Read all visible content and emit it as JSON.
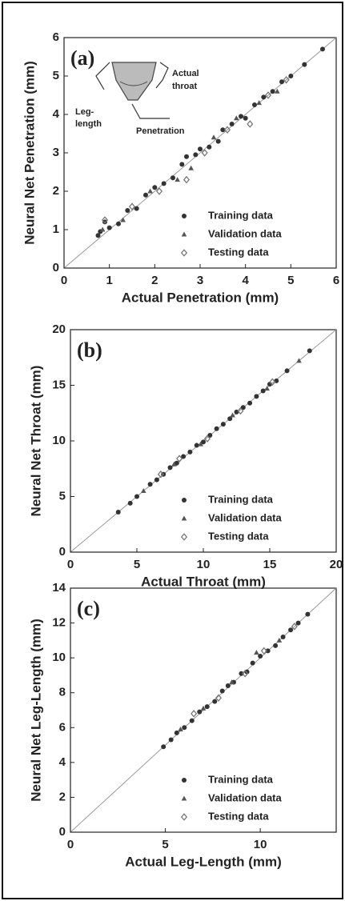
{
  "chart_data": [
    {
      "type": "scatter",
      "panel_label": "(a)",
      "x_label": "Actual Penetration (mm)",
      "y_label": "Neural Net Penetration (mm)",
      "xlim": [
        0,
        6
      ],
      "ylim": [
        0,
        6
      ],
      "xticks": [
        0,
        1,
        2,
        3,
        4,
        5,
        6
      ],
      "yticks": [
        0,
        1,
        2,
        3,
        4,
        5,
        6
      ],
      "diagonal": true,
      "legend": "lower-right",
      "inset_labels": {
        "throat": [
          "Actual",
          "throat"
        ],
        "leg": [
          "Leg-",
          "length"
        ],
        "penetration": "Penetration"
      },
      "series": [
        {
          "name": "Training data",
          "color": "#333333",
          "marker": "circle",
          "x": [
            0.75,
            0.8,
            0.9,
            1.0,
            1.2,
            1.4,
            1.6,
            1.8,
            2.0,
            2.2,
            2.4,
            2.6,
            2.7,
            2.9,
            3.0,
            3.2,
            3.4,
            3.5,
            3.7,
            3.9,
            4.0,
            4.2,
            4.4,
            4.6,
            4.8,
            5.0,
            5.3,
            5.7
          ],
          "values": [
            0.85,
            0.95,
            1.2,
            1.05,
            1.15,
            1.5,
            1.55,
            1.9,
            2.1,
            2.2,
            2.35,
            2.7,
            2.9,
            2.95,
            3.1,
            3.15,
            3.3,
            3.6,
            3.75,
            3.95,
            3.9,
            4.25,
            4.45,
            4.6,
            4.85,
            5.0,
            5.3,
            5.7
          ]
        },
        {
          "name": "Validation data",
          "color": "#555555",
          "marker": "triangle",
          "x": [
            0.85,
            1.3,
            1.9,
            2.5,
            2.8,
            3.3,
            3.8,
            4.3,
            4.7
          ],
          "values": [
            1.0,
            1.25,
            2.0,
            2.3,
            2.6,
            3.4,
            3.9,
            4.3,
            4.6
          ]
        },
        {
          "name": "Testing data",
          "color": "#777777",
          "marker": "diamond",
          "x": [
            0.9,
            1.5,
            2.1,
            2.7,
            3.1,
            3.6,
            4.1,
            4.5,
            4.9
          ],
          "values": [
            1.25,
            1.6,
            2.0,
            2.3,
            3.0,
            3.6,
            3.75,
            4.5,
            4.9
          ]
        }
      ]
    },
    {
      "type": "scatter",
      "panel_label": "(b)",
      "x_label": "Actual Throat (mm)",
      "y_label": "Neural Net Throat (mm)",
      "xlim": [
        0,
        20
      ],
      "ylim": [
        0,
        20
      ],
      "xticks": [
        0,
        5,
        10,
        15,
        20
      ],
      "yticks": [
        0,
        5,
        10,
        15,
        20
      ],
      "diagonal": true,
      "legend": "lower-right",
      "series": [
        {
          "name": "Training data",
          "color": "#333333",
          "marker": "circle",
          "x": [
            3.6,
            4.5,
            5.0,
            6.0,
            6.5,
            7.0,
            7.5,
            8.0,
            8.5,
            9.0,
            9.5,
            10,
            10.5,
            11,
            11.5,
            12,
            12.5,
            13,
            13.5,
            14,
            14.5,
            15,
            15.5,
            16.3,
            18
          ],
          "values": [
            3.6,
            4.4,
            5.0,
            6.1,
            6.5,
            7.0,
            7.6,
            8.0,
            8.6,
            9.0,
            9.6,
            9.9,
            10.5,
            11.1,
            11.5,
            12.0,
            12.6,
            13.0,
            13.4,
            14.0,
            14.5,
            15.1,
            15.4,
            16.3,
            18.1
          ]
        },
        {
          "name": "Validation data",
          "color": "#555555",
          "marker": "triangle",
          "x": [
            5.5,
            7.8,
            9.8,
            12.2,
            14.8,
            17.2
          ],
          "values": [
            5.5,
            7.9,
            9.7,
            12.3,
            14.7,
            17.2
          ]
        },
        {
          "name": "Testing data",
          "color": "#777777",
          "marker": "diamond",
          "x": [
            6.8,
            8.2,
            10.3,
            12.8,
            15.2
          ],
          "values": [
            7.0,
            8.4,
            10.2,
            12.7,
            15.3
          ]
        }
      ]
    },
    {
      "type": "scatter",
      "panel_label": "(c)",
      "x_label": "Actual Leg-Length (mm)",
      "y_label": "Neural Net Leg-Length (mm)",
      "xlim": [
        0,
        14
      ],
      "ylim": [
        0,
        14
      ],
      "xticks": [
        0,
        5,
        10
      ],
      "yticks": [
        0,
        2,
        4,
        6,
        8,
        10,
        12,
        14
      ],
      "diagonal": true,
      "legend": "lower-right",
      "series": [
        {
          "name": "Training data",
          "color": "#333333",
          "marker": "circle",
          "x": [
            4.9,
            5.3,
            5.6,
            6.0,
            6.4,
            6.8,
            7.2,
            7.6,
            8.0,
            8.3,
            8.6,
            9.0,
            9.3,
            9.6,
            10.0,
            10.4,
            10.8,
            11.2,
            11.6,
            12.0,
            12.5
          ],
          "values": [
            4.9,
            5.3,
            5.7,
            6.0,
            6.4,
            6.9,
            7.2,
            7.5,
            8.1,
            8.4,
            8.6,
            9.1,
            9.2,
            9.7,
            10.1,
            10.4,
            10.7,
            11.2,
            11.6,
            12.0,
            12.5
          ]
        },
        {
          "name": "Validation data",
          "color": "#555555",
          "marker": "triangle",
          "x": [
            5.8,
            7.0,
            8.5,
            9.8,
            11.0
          ],
          "values": [
            5.9,
            7.1,
            8.6,
            10.3,
            11.0
          ]
        },
        {
          "name": "Testing data",
          "color": "#777777",
          "marker": "diamond",
          "x": [
            6.5,
            7.8,
            9.2,
            10.2,
            11.8
          ],
          "values": [
            6.8,
            7.7,
            9.1,
            10.4,
            11.8
          ]
        }
      ]
    }
  ]
}
